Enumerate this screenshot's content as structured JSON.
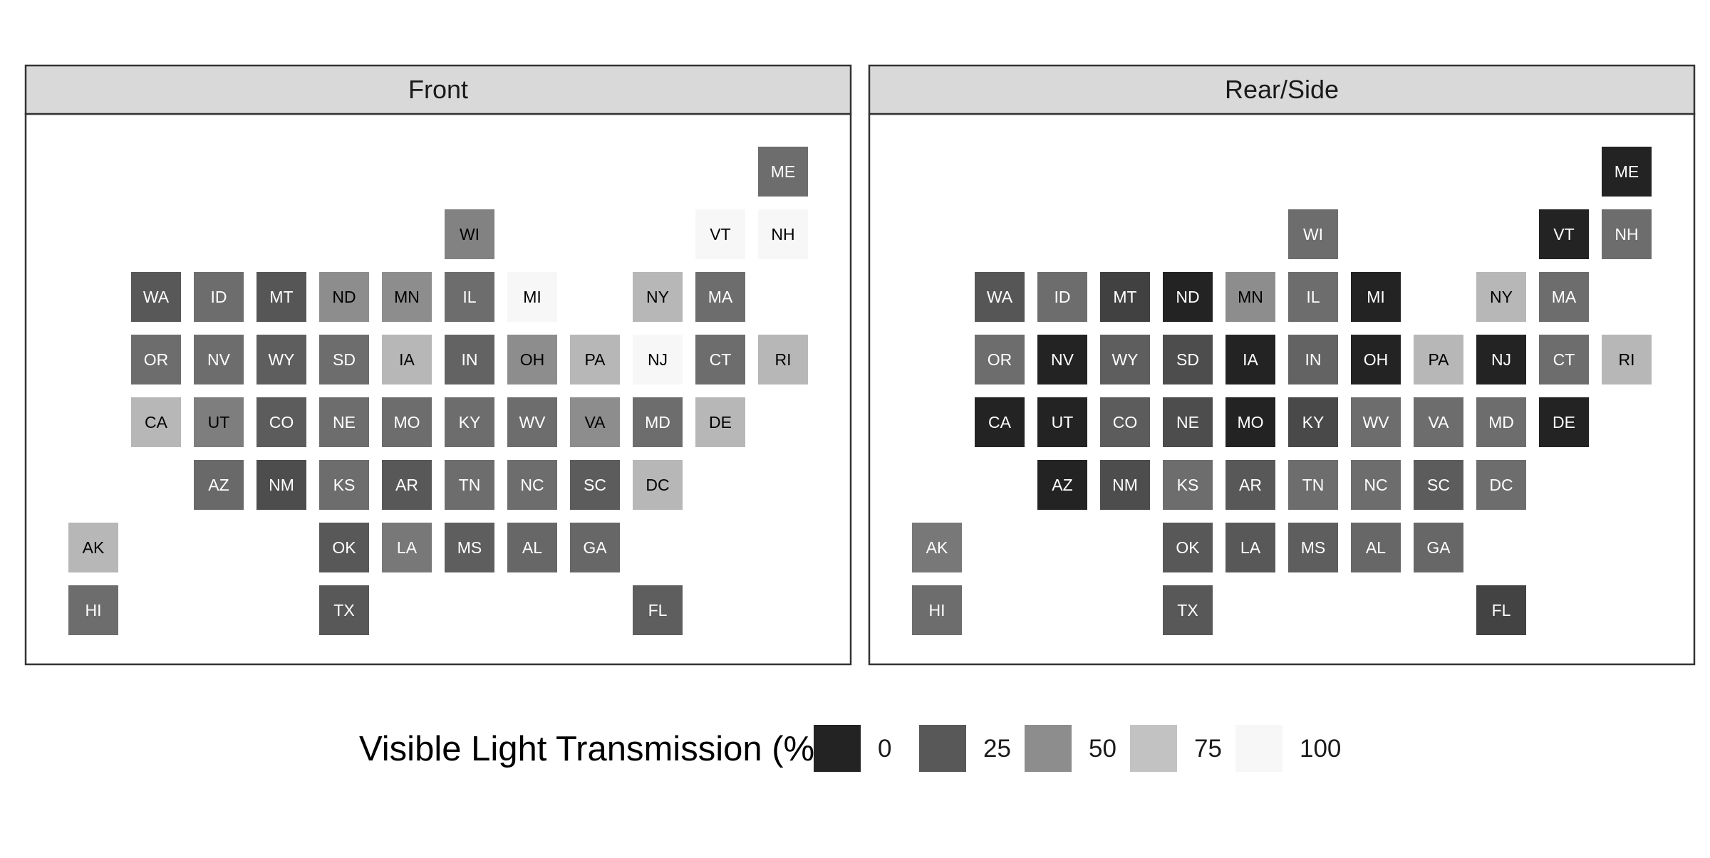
{
  "chart_data": {
    "type": "heatmap",
    "panels": [
      {
        "name": "Front",
        "tiles": [
          {
            "state": "ME",
            "col": 11,
            "row": 0,
            "value": 35
          },
          {
            "state": "WI",
            "col": 6,
            "row": 1,
            "value": 45
          },
          {
            "state": "VT",
            "col": 10,
            "row": 1,
            "value": 100
          },
          {
            "state": "NH",
            "col": 11,
            "row": 1,
            "value": 100
          },
          {
            "state": "WA",
            "col": 1,
            "row": 2,
            "value": 25
          },
          {
            "state": "ID",
            "col": 2,
            "row": 2,
            "value": 35
          },
          {
            "state": "MT",
            "col": 3,
            "row": 2,
            "value": 24
          },
          {
            "state": "ND",
            "col": 4,
            "row": 2,
            "value": 50
          },
          {
            "state": "MN",
            "col": 5,
            "row": 2,
            "value": 50
          },
          {
            "state": "IL",
            "col": 6,
            "row": 2,
            "value": 35
          },
          {
            "state": "MI",
            "col": 7,
            "row": 2,
            "value": 100
          },
          {
            "state": "NY",
            "col": 9,
            "row": 2,
            "value": 70
          },
          {
            "state": "MA",
            "col": 10,
            "row": 2,
            "value": 35
          },
          {
            "state": "OR",
            "col": 1,
            "row": 3,
            "value": 35
          },
          {
            "state": "NV",
            "col": 2,
            "row": 3,
            "value": 35
          },
          {
            "state": "WY",
            "col": 3,
            "row": 3,
            "value": 28
          },
          {
            "state": "SD",
            "col": 4,
            "row": 3,
            "value": 35
          },
          {
            "state": "IA",
            "col": 5,
            "row": 3,
            "value": 70
          },
          {
            "state": "IN",
            "col": 6,
            "row": 3,
            "value": 30
          },
          {
            "state": "OH",
            "col": 7,
            "row": 3,
            "value": 50
          },
          {
            "state": "PA",
            "col": 8,
            "row": 3,
            "value": 70
          },
          {
            "state": "NJ",
            "col": 9,
            "row": 3,
            "value": 100
          },
          {
            "state": "CT",
            "col": 10,
            "row": 3,
            "value": 35
          },
          {
            "state": "RI",
            "col": 11,
            "row": 3,
            "value": 70
          },
          {
            "state": "CA",
            "col": 1,
            "row": 4,
            "value": 70
          },
          {
            "state": "UT",
            "col": 2,
            "row": 4,
            "value": 43
          },
          {
            "state": "CO",
            "col": 3,
            "row": 4,
            "value": 27
          },
          {
            "state": "NE",
            "col": 4,
            "row": 4,
            "value": 35
          },
          {
            "state": "MO",
            "col": 5,
            "row": 4,
            "value": 35
          },
          {
            "state": "KY",
            "col": 6,
            "row": 4,
            "value": 35
          },
          {
            "state": "WV",
            "col": 7,
            "row": 4,
            "value": 35
          },
          {
            "state": "VA",
            "col": 8,
            "row": 4,
            "value": 50
          },
          {
            "state": "MD",
            "col": 9,
            "row": 4,
            "value": 35
          },
          {
            "state": "DE",
            "col": 10,
            "row": 4,
            "value": 70
          },
          {
            "state": "AZ",
            "col": 2,
            "row": 5,
            "value": 33
          },
          {
            "state": "NM",
            "col": 3,
            "row": 5,
            "value": 20
          },
          {
            "state": "KS",
            "col": 4,
            "row": 5,
            "value": 35
          },
          {
            "state": "AR",
            "col": 5,
            "row": 5,
            "value": 25
          },
          {
            "state": "TN",
            "col": 6,
            "row": 5,
            "value": 35
          },
          {
            "state": "NC",
            "col": 7,
            "row": 5,
            "value": 35
          },
          {
            "state": "SC",
            "col": 8,
            "row": 5,
            "value": 27
          },
          {
            "state": "DC",
            "col": 9,
            "row": 5,
            "value": 70
          },
          {
            "state": "AK",
            "col": 0,
            "row": 6,
            "value": 70
          },
          {
            "state": "OK",
            "col": 4,
            "row": 6,
            "value": 25
          },
          {
            "state": "LA",
            "col": 5,
            "row": 6,
            "value": 40
          },
          {
            "state": "MS",
            "col": 6,
            "row": 6,
            "value": 28
          },
          {
            "state": "AL",
            "col": 7,
            "row": 6,
            "value": 32
          },
          {
            "state": "GA",
            "col": 8,
            "row": 6,
            "value": 32
          },
          {
            "state": "HI",
            "col": 0,
            "row": 7,
            "value": 35
          },
          {
            "state": "TX",
            "col": 4,
            "row": 7,
            "value": 25
          },
          {
            "state": "FL",
            "col": 9,
            "row": 7,
            "value": 28
          }
        ]
      },
      {
        "name": "Rear/Side",
        "tiles": [
          {
            "state": "ME",
            "col": 11,
            "row": 0,
            "value": 0
          },
          {
            "state": "WI",
            "col": 6,
            "row": 1,
            "value": 35
          },
          {
            "state": "VT",
            "col": 10,
            "row": 1,
            "value": 0
          },
          {
            "state": "NH",
            "col": 11,
            "row": 1,
            "value": 35
          },
          {
            "state": "WA",
            "col": 1,
            "row": 2,
            "value": 24
          },
          {
            "state": "ID",
            "col": 2,
            "row": 2,
            "value": 35
          },
          {
            "state": "MT",
            "col": 3,
            "row": 2,
            "value": 14
          },
          {
            "state": "ND",
            "col": 4,
            "row": 2,
            "value": 0
          },
          {
            "state": "MN",
            "col": 5,
            "row": 2,
            "value": 50
          },
          {
            "state": "IL",
            "col": 6,
            "row": 2,
            "value": 35
          },
          {
            "state": "MI",
            "col": 7,
            "row": 2,
            "value": 0
          },
          {
            "state": "NY",
            "col": 9,
            "row": 2,
            "value": 70
          },
          {
            "state": "MA",
            "col": 10,
            "row": 2,
            "value": 35
          },
          {
            "state": "OR",
            "col": 1,
            "row": 3,
            "value": 35
          },
          {
            "state": "NV",
            "col": 2,
            "row": 3,
            "value": 0
          },
          {
            "state": "WY",
            "col": 3,
            "row": 3,
            "value": 28
          },
          {
            "state": "SD",
            "col": 4,
            "row": 3,
            "value": 20
          },
          {
            "state": "IA",
            "col": 5,
            "row": 3,
            "value": 0
          },
          {
            "state": "IN",
            "col": 6,
            "row": 3,
            "value": 30
          },
          {
            "state": "OH",
            "col": 7,
            "row": 3,
            "value": 0
          },
          {
            "state": "PA",
            "col": 8,
            "row": 3,
            "value": 70
          },
          {
            "state": "NJ",
            "col": 9,
            "row": 3,
            "value": 0
          },
          {
            "state": "CT",
            "col": 10,
            "row": 3,
            "value": 35
          },
          {
            "state": "RI",
            "col": 11,
            "row": 3,
            "value": 70
          },
          {
            "state": "CA",
            "col": 1,
            "row": 4,
            "value": 0
          },
          {
            "state": "UT",
            "col": 2,
            "row": 4,
            "value": 0
          },
          {
            "state": "CO",
            "col": 3,
            "row": 4,
            "value": 27
          },
          {
            "state": "NE",
            "col": 4,
            "row": 4,
            "value": 20
          },
          {
            "state": "MO",
            "col": 5,
            "row": 4,
            "value": 0
          },
          {
            "state": "KY",
            "col": 6,
            "row": 4,
            "value": 18
          },
          {
            "state": "WV",
            "col": 7,
            "row": 4,
            "value": 35
          },
          {
            "state": "VA",
            "col": 8,
            "row": 4,
            "value": 35
          },
          {
            "state": "MD",
            "col": 9,
            "row": 4,
            "value": 35
          },
          {
            "state": "DE",
            "col": 10,
            "row": 4,
            "value": 0
          },
          {
            "state": "AZ",
            "col": 2,
            "row": 5,
            "value": 0
          },
          {
            "state": "NM",
            "col": 3,
            "row": 5,
            "value": 20
          },
          {
            "state": "KS",
            "col": 4,
            "row": 5,
            "value": 35
          },
          {
            "state": "AR",
            "col": 5,
            "row": 5,
            "value": 25
          },
          {
            "state": "TN",
            "col": 6,
            "row": 5,
            "value": 35
          },
          {
            "state": "NC",
            "col": 7,
            "row": 5,
            "value": 35
          },
          {
            "state": "SC",
            "col": 8,
            "row": 5,
            "value": 27
          },
          {
            "state": "DC",
            "col": 9,
            "row": 5,
            "value": 35
          },
          {
            "state": "AK",
            "col": 0,
            "row": 6,
            "value": 40
          },
          {
            "state": "OK",
            "col": 4,
            "row": 6,
            "value": 25
          },
          {
            "state": "LA",
            "col": 5,
            "row": 6,
            "value": 25
          },
          {
            "state": "MS",
            "col": 6,
            "row": 6,
            "value": 28
          },
          {
            "state": "AL",
            "col": 7,
            "row": 6,
            "value": 32
          },
          {
            "state": "GA",
            "col": 8,
            "row": 6,
            "value": 32
          },
          {
            "state": "HI",
            "col": 0,
            "row": 7,
            "value": 35
          },
          {
            "state": "TX",
            "col": 4,
            "row": 7,
            "value": 25
          },
          {
            "state": "FL",
            "col": 9,
            "row": 7,
            "value": 15
          }
        ]
      }
    ],
    "legend": {
      "title": "Visible Light Transmission (%)",
      "breaks": [
        "0",
        "25",
        "50",
        "75",
        "100"
      ],
      "position": "bottom",
      "range": [
        0,
        100
      ]
    },
    "colors": {
      "low": "#232323",
      "high": "#f7f7f7",
      "label_dark": "#000000",
      "label_light": "#ffffff",
      "strip_fill": "#d9d9d9",
      "border": "#333333"
    }
  }
}
